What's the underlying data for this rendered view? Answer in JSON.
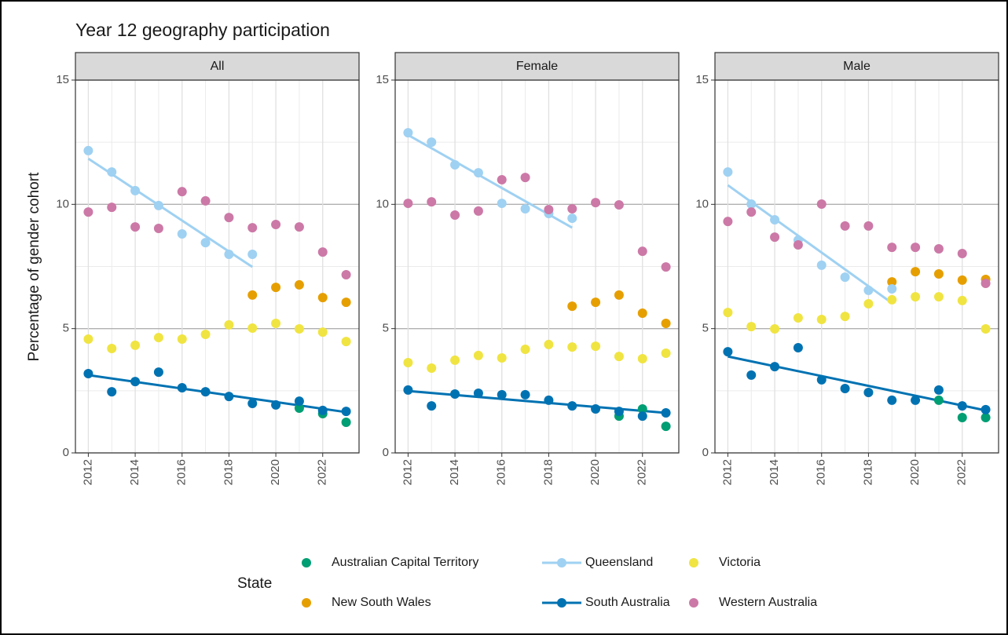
{
  "title": "Year 12 geography participation",
  "ylabel": "Percentage of gender cohort",
  "legend_title": "State",
  "chart_data": [
    {
      "type": "scatter",
      "title": "All",
      "xlim": [
        2011.45,
        2023.55
      ],
      "ylim": [
        0,
        15
      ],
      "xticks": [
        2012,
        2014,
        2016,
        2018,
        2020,
        2022
      ],
      "yticks": [
        0,
        5,
        10,
        15
      ],
      "grid": true,
      "series": [
        {
          "name": "Australian Capital Territory",
          "color": "#009e73",
          "x": [
            2021,
            2022,
            2023
          ],
          "values": [
            1.8,
            1.58,
            1.23
          ]
        },
        {
          "name": "New South Wales",
          "color": "#e69f00",
          "x": [
            2019,
            2020,
            2021,
            2022,
            2023
          ],
          "values": [
            6.35,
            6.66,
            6.76,
            6.25,
            6.06
          ]
        },
        {
          "name": "Queensland",
          "color": "#9fd1f2",
          "x": [
            2012,
            2013,
            2014,
            2015,
            2016,
            2017,
            2018,
            2019
          ],
          "values": [
            12.16,
            11.3,
            10.55,
            9.95,
            8.81,
            8.46,
            7.99,
            7.99
          ],
          "trend": {
            "x": [
              2012,
              2019
            ],
            "values": [
              11.84,
              7.48
            ]
          }
        },
        {
          "name": "South Australia",
          "color": "#0072b2",
          "x": [
            2012,
            2013,
            2014,
            2015,
            2016,
            2017,
            2018,
            2019,
            2020,
            2021,
            2022,
            2023
          ],
          "values": [
            3.19,
            2.46,
            2.87,
            3.25,
            2.62,
            2.46,
            2.27,
            1.99,
            1.93,
            2.08,
            1.71,
            1.67
          ],
          "trend": {
            "x": [
              2012,
              2023
            ],
            "values": [
              3.13,
              1.64
            ]
          }
        },
        {
          "name": "Victoria",
          "color": "#f0e442",
          "x": [
            2012,
            2013,
            2014,
            2015,
            2016,
            2017,
            2018,
            2019,
            2020,
            2021,
            2022,
            2023
          ],
          "values": [
            4.58,
            4.2,
            4.33,
            4.64,
            4.58,
            4.77,
            5.15,
            5.02,
            5.21,
            4.99,
            4.86,
            4.48
          ]
        },
        {
          "name": "Western Australia",
          "color": "#cc79a7",
          "x": [
            2012,
            2013,
            2014,
            2015,
            2016,
            2017,
            2018,
            2019,
            2020,
            2021,
            2022,
            2023
          ],
          "values": [
            9.69,
            9.88,
            9.09,
            9.03,
            10.51,
            10.14,
            9.47,
            9.06,
            9.19,
            9.09,
            8.08,
            7.17
          ]
        }
      ]
    },
    {
      "type": "scatter",
      "title": "Female",
      "xlim": [
        2011.45,
        2023.55
      ],
      "ylim": [
        0,
        15
      ],
      "xticks": [
        2012,
        2014,
        2016,
        2018,
        2020,
        2022
      ],
      "yticks": [
        0,
        5,
        10,
        15
      ],
      "grid": true,
      "series": [
        {
          "name": "Australian Capital Territory",
          "color": "#009e73",
          "x": [
            2021,
            2022,
            2023
          ],
          "values": [
            1.48,
            1.77,
            1.07
          ]
        },
        {
          "name": "New South Wales",
          "color": "#e69f00",
          "x": [
            2019,
            2020,
            2021,
            2022,
            2023
          ],
          "values": [
            5.9,
            6.06,
            6.35,
            5.62,
            5.21
          ]
        },
        {
          "name": "Queensland",
          "color": "#9fd1f2",
          "x": [
            2012,
            2013,
            2014,
            2015,
            2016,
            2017,
            2018,
            2019
          ],
          "values": [
            12.88,
            12.5,
            11.59,
            11.27,
            10.04,
            9.82,
            9.63,
            9.44
          ],
          "trend": {
            "x": [
              2012,
              2019
            ],
            "values": [
              12.79,
              9.06
            ]
          }
        },
        {
          "name": "South Australia",
          "color": "#0072b2",
          "x": [
            2012,
            2013,
            2014,
            2015,
            2016,
            2017,
            2018,
            2019,
            2020,
            2021,
            2022,
            2023
          ],
          "values": [
            2.53,
            1.89,
            2.37,
            2.4,
            2.34,
            2.34,
            2.12,
            1.89,
            1.77,
            1.67,
            1.48,
            1.61
          ],
          "trend": {
            "x": [
              2012,
              2023
            ],
            "values": [
              2.49,
              1.61
            ]
          }
        },
        {
          "name": "Victoria",
          "color": "#f0e442",
          "x": [
            2012,
            2013,
            2014,
            2015,
            2016,
            2017,
            2018,
            2019,
            2020,
            2021,
            2022,
            2023
          ],
          "values": [
            3.63,
            3.41,
            3.73,
            3.92,
            3.82,
            4.17,
            4.36,
            4.26,
            4.29,
            3.88,
            3.79,
            4.01
          ]
        },
        {
          "name": "Western Australia",
          "color": "#cc79a7",
          "x": [
            2012,
            2013,
            2014,
            2015,
            2016,
            2017,
            2018,
            2019,
            2020,
            2021,
            2022,
            2023
          ],
          "values": [
            10.04,
            10.1,
            9.57,
            9.73,
            10.99,
            11.08,
            9.79,
            9.82,
            10.07,
            9.98,
            8.11,
            7.48
          ]
        }
      ]
    },
    {
      "type": "scatter",
      "title": "Male",
      "xlim": [
        2011.45,
        2023.55
      ],
      "ylim": [
        0,
        15
      ],
      "xticks": [
        2012,
        2014,
        2016,
        2018,
        2020,
        2022
      ],
      "yticks": [
        0,
        5,
        10,
        15
      ],
      "grid": true,
      "series": [
        {
          "name": "Australian Capital Territory",
          "color": "#009e73",
          "x": [
            2021,
            2022,
            2023
          ],
          "values": [
            2.12,
            1.42,
            1.42
          ]
        },
        {
          "name": "New South Wales",
          "color": "#e69f00",
          "x": [
            2019,
            2020,
            2021,
            2022,
            2023
          ],
          "values": [
            6.88,
            7.29,
            7.2,
            6.95,
            6.98
          ]
        },
        {
          "name": "Queensland",
          "color": "#9fd1f2",
          "x": [
            2012,
            2013,
            2014,
            2015,
            2016,
            2017,
            2018,
            2019
          ],
          "values": [
            11.3,
            10.01,
            9.38,
            8.56,
            7.55,
            7.07,
            6.54,
            6.6
          ],
          "trend": {
            "x": [
              2012,
              2019
            ],
            "values": [
              10.77,
              6.03
            ]
          }
        },
        {
          "name": "South Australia",
          "color": "#0072b2",
          "x": [
            2012,
            2013,
            2014,
            2015,
            2016,
            2017,
            2018,
            2019,
            2020,
            2021,
            2022,
            2023
          ],
          "values": [
            4.07,
            3.13,
            3.47,
            4.23,
            2.94,
            2.59,
            2.43,
            2.12,
            2.12,
            2.53,
            1.89,
            1.74
          ],
          "trend": {
            "x": [
              2012,
              2023
            ],
            "values": [
              3.88,
              1.71
            ]
          }
        },
        {
          "name": "Victoria",
          "color": "#f0e442",
          "x": [
            2012,
            2013,
            2014,
            2015,
            2016,
            2017,
            2018,
            2019,
            2020,
            2021,
            2022,
            2023
          ],
          "values": [
            5.65,
            5.08,
            4.99,
            5.43,
            5.37,
            5.49,
            6.0,
            6.16,
            6.28,
            6.28,
            6.13,
            4.99
          ]
        },
        {
          "name": "Western Australia",
          "color": "#cc79a7",
          "x": [
            2012,
            2013,
            2014,
            2015,
            2016,
            2017,
            2018,
            2019,
            2020,
            2021,
            2022,
            2023
          ],
          "values": [
            9.31,
            9.69,
            8.68,
            8.37,
            10.01,
            9.13,
            9.13,
            8.27,
            8.27,
            8.21,
            8.02,
            6.82
          ]
        }
      ]
    }
  ]
}
